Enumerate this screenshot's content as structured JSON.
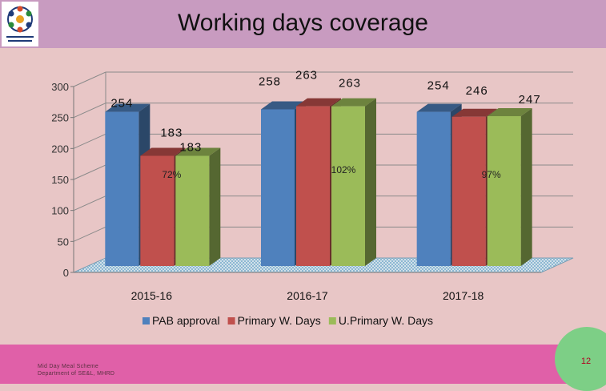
{
  "slide": {
    "title": "Working days coverage",
    "footer_line1": "Mid Day Meal Scheme",
    "footer_line2": "Department of SE&L, MHRD",
    "page_number": "12"
  },
  "chart_data": {
    "type": "bar",
    "title": "",
    "categories": [
      "2015-16",
      "2016-17",
      "2017-18"
    ],
    "series": [
      {
        "name": "PAB approval",
        "values": [
          254,
          258,
          254
        ],
        "color": "#4f81bd"
      },
      {
        "name": "Primary W. Days",
        "values": [
          183,
          263,
          246
        ],
        "color": "#c0504d"
      },
      {
        "name": "U.Primary W. Days",
        "values": [
          183,
          263,
          247
        ],
        "color": "#9bbb59"
      }
    ],
    "percent_labels": [
      "72%",
      "102%",
      "97%"
    ],
    "ylim": [
      0,
      300
    ],
    "yticks": [
      0,
      50,
      100,
      150,
      200,
      250,
      300
    ],
    "grid": true,
    "legend": "bottom",
    "style": "3d-clustered-column"
  }
}
